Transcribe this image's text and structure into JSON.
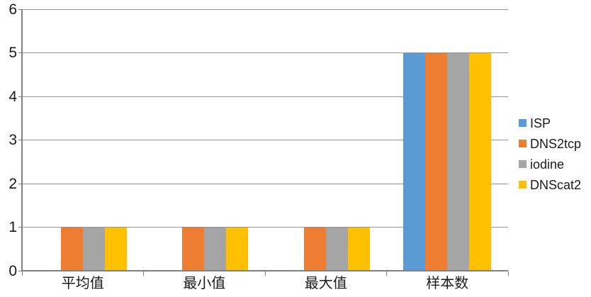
{
  "chart_data": {
    "type": "bar",
    "title": "",
    "categories": [
      "平均值",
      "最小值",
      "最大值",
      "样本数"
    ],
    "series": [
      {
        "name": "ISP",
        "color": "#5B9BD5",
        "values": [
          0,
          0,
          0,
          5
        ]
      },
      {
        "name": "DNS2tcp",
        "color": "#ED7D31",
        "values": [
          1,
          1,
          1,
          5
        ]
      },
      {
        "name": "iodine",
        "color": "#A5A5A5",
        "values": [
          1,
          1,
          1,
          5
        ]
      },
      {
        "name": "DNScat2",
        "color": "#FFC000",
        "values": [
          1,
          1,
          1,
          5
        ]
      }
    ],
    "ylim": [
      0,
      6
    ],
    "yticks": [
      0,
      1,
      2,
      3,
      4,
      5,
      6
    ],
    "xlabel": "",
    "ylabel": "",
    "grid": "horizontal",
    "legend_position": "right",
    "axis_color": "#808080",
    "gridline_color": "#949494",
    "text_color": "#1a1a1a"
  }
}
